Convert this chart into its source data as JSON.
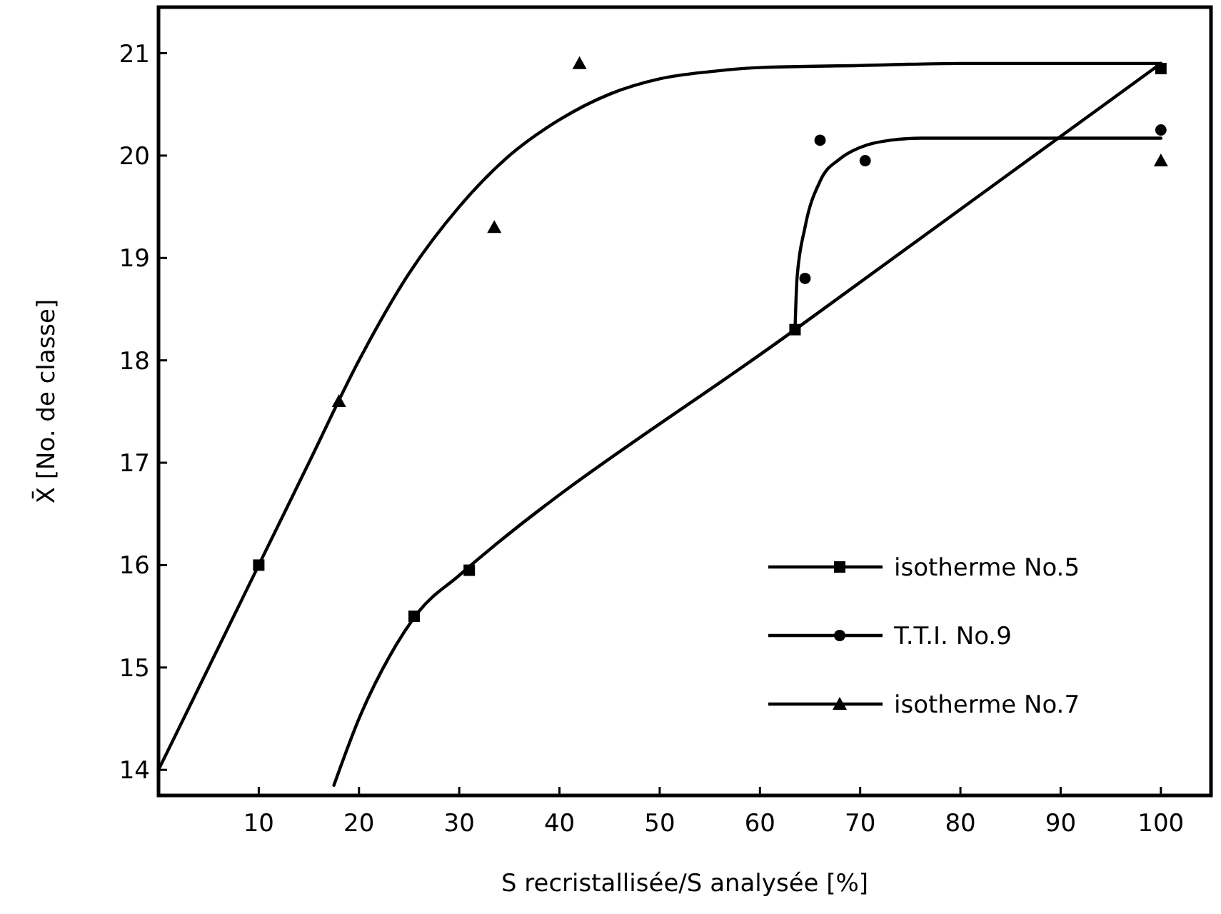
{
  "chart_data": {
    "type": "scatter",
    "xlabel": "S recristallisée/S analysée [%]",
    "ylabel": "X̄ [No. de classe]",
    "xlim": [
      0,
      105
    ],
    "ylim": [
      13.75,
      21.45
    ],
    "xticks": [
      10,
      20,
      30,
      40,
      50,
      60,
      70,
      80,
      90,
      100
    ],
    "yticks": [
      14,
      15,
      16,
      17,
      18,
      19,
      20,
      21
    ],
    "grid": false,
    "legend": "bottom right",
    "series": [
      {
        "name": "isotherme No.5",
        "marker": "square",
        "color": "#000000",
        "x": [
          10,
          25.5,
          31,
          63.5,
          100
        ],
        "values": [
          16,
          15.5,
          15.95,
          18.3,
          20.85
        ]
      },
      {
        "name": "T.T.I. No.9",
        "marker": "circle",
        "color": "#000000",
        "x": [
          64.5,
          66,
          70.5,
          100
        ],
        "values": [
          18.8,
          20.15,
          19.95,
          20.25
        ]
      },
      {
        "name": "isotherme No.7",
        "marker": "triangle",
        "color": "#000000",
        "x": [
          18,
          33.5,
          42,
          100
        ],
        "values": [
          17.6,
          19.3,
          20.9,
          19.95
        ]
      },
      {
        "type": "line",
        "color": "#000000",
        "x": [
          17.5,
          20,
          23,
          26,
          30,
          63.5,
          100
        ],
        "values": [
          13.85,
          14.5,
          15.1,
          15.55,
          15.9,
          18.3,
          20.9
        ]
      },
      {
        "type": "line",
        "color": "#000000",
        "x": [
          63.5,
          63.7,
          64.5,
          66,
          68,
          70,
          73,
          76,
          100
        ],
        "values": [
          18.3,
          18.8,
          19.3,
          19.75,
          19.97,
          20.08,
          20.15,
          20.17,
          20.17
        ]
      },
      {
        "type": "line",
        "color": "#000000",
        "x": [
          0,
          5,
          10,
          15,
          20,
          25,
          30,
          35,
          40,
          45,
          50,
          55,
          60,
          70,
          80,
          100
        ],
        "values": [
          14,
          15,
          16,
          17,
          18,
          18.85,
          19.5,
          20,
          20.35,
          20.6,
          20.75,
          20.82,
          20.86,
          20.88,
          20.9,
          20.9
        ]
      }
    ]
  }
}
